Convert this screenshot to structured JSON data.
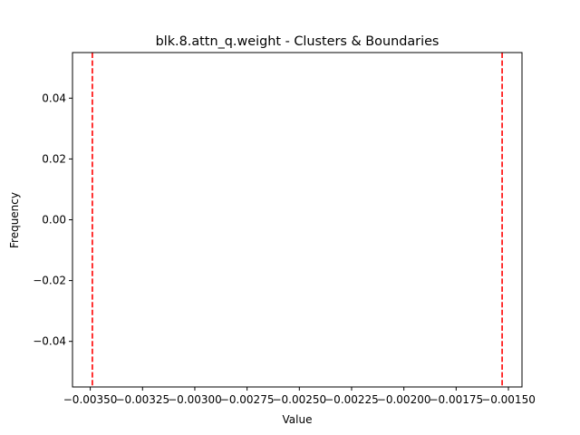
{
  "chart_data": {
    "type": "histogram",
    "title": "blk.8.attn_q.weight - Clusters & Boundaries",
    "xlabel": "Value",
    "ylabel": "Frequency",
    "xlim": [
      -0.003585,
      -0.001435
    ],
    "ylim": [
      -0.055,
      0.055
    ],
    "x_ticks": [
      {
        "value": -0.0035,
        "label": "−0.00350"
      },
      {
        "value": -0.00325,
        "label": "−0.00325"
      },
      {
        "value": -0.003,
        "label": "−0.00300"
      },
      {
        "value": -0.00275,
        "label": "−0.00275"
      },
      {
        "value": -0.0025,
        "label": "−0.00250"
      },
      {
        "value": -0.00225,
        "label": "−0.00225"
      },
      {
        "value": -0.002,
        "label": "−0.00200"
      },
      {
        "value": -0.00175,
        "label": "−0.00175"
      },
      {
        "value": -0.0015,
        "label": "−0.00150"
      }
    ],
    "y_ticks": [
      {
        "value": 0.04,
        "label": "0.04"
      },
      {
        "value": 0.02,
        "label": "0.02"
      },
      {
        "value": 0.0,
        "label": "0.00"
      },
      {
        "value": -0.02,
        "label": "−0.02"
      },
      {
        "value": -0.04,
        "label": "−0.04"
      }
    ],
    "boundaries": [
      -0.00349,
      -0.00153
    ],
    "boundary_color": "#ff0000",
    "grid": false
  }
}
